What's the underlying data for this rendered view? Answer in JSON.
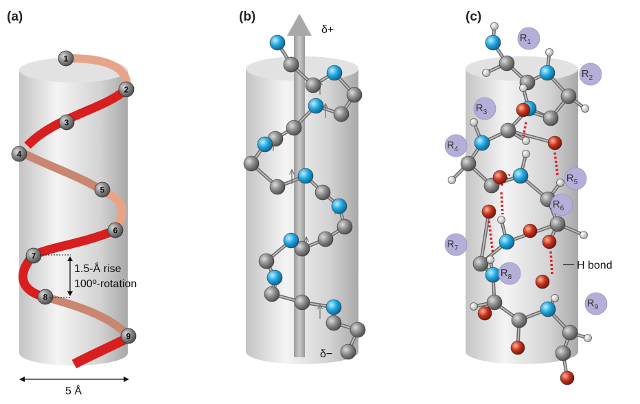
{
  "panels": [
    {
      "label": "(a)"
    },
    {
      "label": "(b)"
    },
    {
      "label": "(c)"
    }
  ],
  "panel_a": {
    "residue_numbers": [
      "1",
      "2",
      "3",
      "4",
      "5",
      "6",
      "7",
      "8",
      "9"
    ],
    "rise_label": "1.5-Å rise",
    "rotation_label": "100º-rotation",
    "width_label": "5 Å"
  },
  "panel_b": {
    "dipole_positive": "δ+",
    "dipole_negative": "δ−"
  },
  "panel_c": {
    "side_chains": [
      "R1",
      "R2",
      "R3",
      "R4",
      "R5",
      "R6",
      "R7",
      "R8",
      "R9"
    ],
    "hbond_label": "H bond"
  },
  "colors": {
    "ribbon_front": "#d81e1e",
    "ribbon_back": "#e8a488",
    "nitrogen": "#1ea6e0",
    "oxygen": "#c8321c",
    "carbon": "#7d7d7d",
    "hydrogen": "#e6e6e6",
    "side_chain": "#b4afd8",
    "hbond": "#e01a2a",
    "cylinder": "#d6d6d6"
  }
}
